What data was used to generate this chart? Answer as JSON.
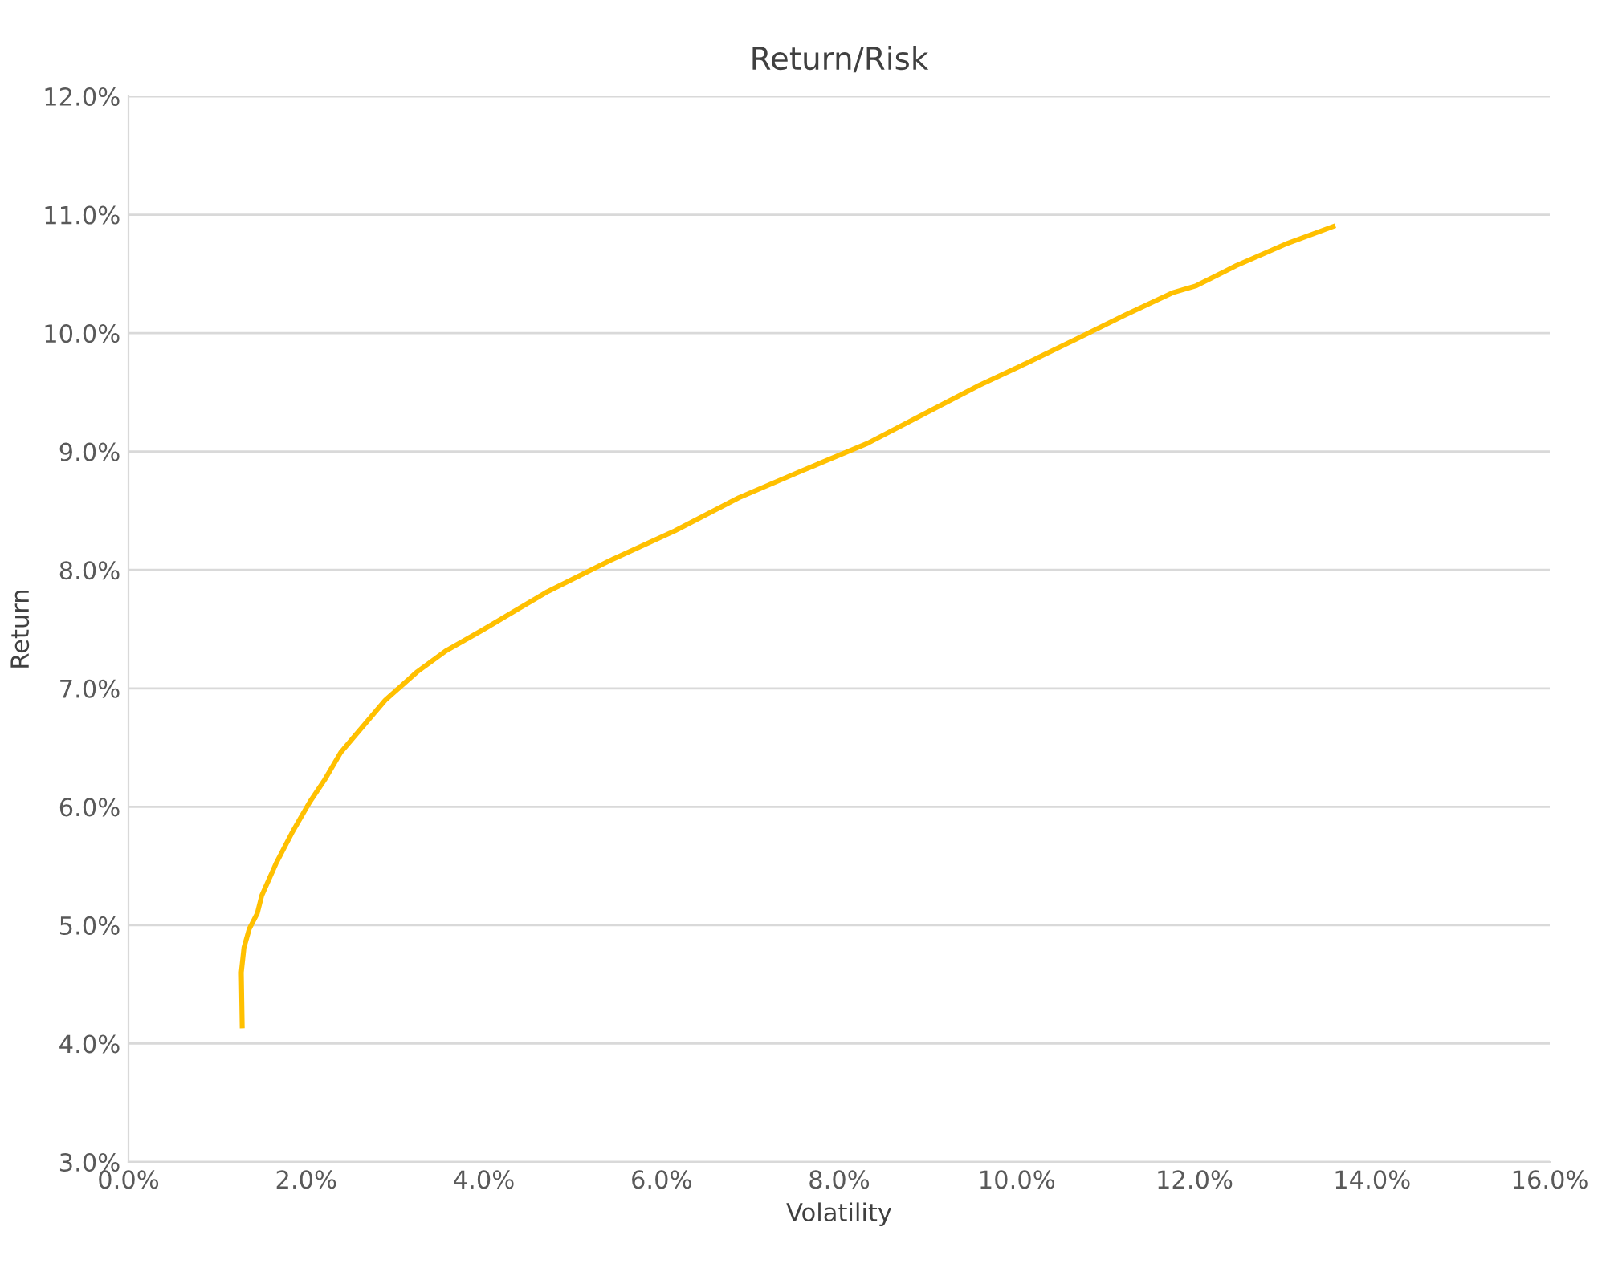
{
  "chart_data": {
    "type": "line",
    "title": "Return/Risk",
    "xlabel": "Volatility",
    "ylabel": "Return",
    "x": [
      1.28,
      1.27,
      1.3,
      1.36,
      1.45,
      1.5,
      1.66,
      1.84,
      2.04,
      2.21,
      2.39,
      2.89,
      3.25,
      3.58,
      3.98,
      4.7,
      5.42,
      6.15,
      6.87,
      7.59,
      8.32,
      9.04,
      9.58,
      10.12,
      10.67,
      11.21,
      11.75,
      12.02,
      12.47,
      13.02,
      13.56
    ],
    "series": [
      {
        "color": "#ffc000",
        "values": [
          4.15,
          4.6,
          4.81,
          4.97,
          5.1,
          5.25,
          5.52,
          5.78,
          6.04,
          6.23,
          6.46,
          6.9,
          7.14,
          7.32,
          7.49,
          7.81,
          8.08,
          8.33,
          8.61,
          8.84,
          9.07,
          9.35,
          9.56,
          9.75,
          9.95,
          10.15,
          10.34,
          10.4,
          10.57,
          10.75,
          10.9
        ]
      }
    ],
    "xlim": [
      0,
      16
    ],
    "ylim": [
      3,
      12
    ],
    "xticks": [
      {
        "value": 0,
        "label": "0.0%"
      },
      {
        "value": 2,
        "label": "2.0%"
      },
      {
        "value": 4,
        "label": "4.0%"
      },
      {
        "value": 6,
        "label": "6.0%"
      },
      {
        "value": 8,
        "label": "8.0%"
      },
      {
        "value": 10,
        "label": "10.0%"
      },
      {
        "value": 12,
        "label": "12.0%"
      },
      {
        "value": 14,
        "label": "14.0%"
      },
      {
        "value": 16,
        "label": "16.0%"
      }
    ],
    "yticks": [
      {
        "value": 3,
        "label": "3.0%"
      },
      {
        "value": 4,
        "label": "4.0%"
      },
      {
        "value": 5,
        "label": "5.0%"
      },
      {
        "value": 6,
        "label": "6.0%"
      },
      {
        "value": 7,
        "label": "7.0%"
      },
      {
        "value": 8,
        "label": "8.0%"
      },
      {
        "value": 9,
        "label": "9.0%"
      },
      {
        "value": 10,
        "label": "10.0%"
      },
      {
        "value": 11,
        "label": "11.0%"
      },
      {
        "value": 12,
        "label": "12.0%"
      }
    ],
    "grid": "y",
    "marker": "none",
    "line_style": "solid"
  }
}
